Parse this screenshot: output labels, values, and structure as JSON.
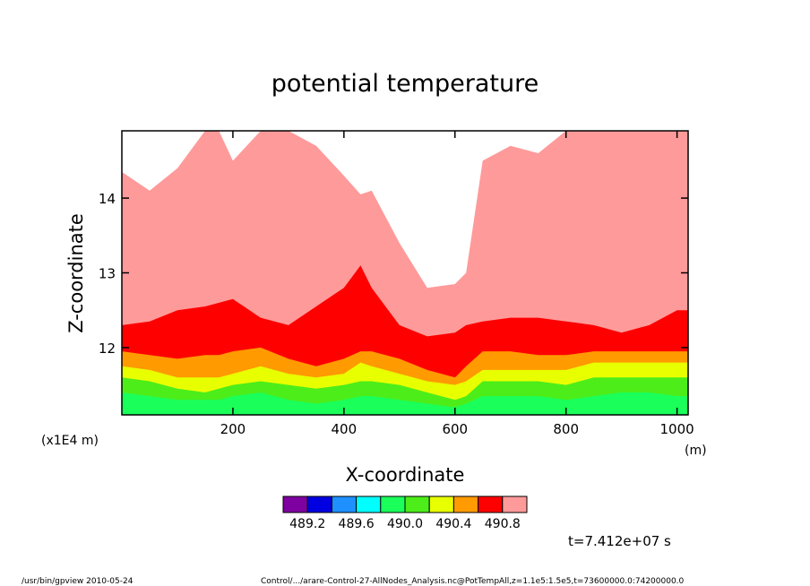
{
  "chart_data": {
    "type": "heatmap",
    "title": "potential temperature",
    "xlabel": "X-coordinate",
    "ylabel": "Z-coordinate",
    "x_unit": "(m)",
    "y_scale_note": "(x1E4 m)",
    "xlim": [
      0,
      1020
    ],
    "ylim": [
      11.1,
      14.9
    ],
    "x_ticks": [
      "200",
      "400",
      "600",
      "800",
      "1000"
    ],
    "x_tick_values": [
      200,
      400,
      600,
      800,
      1000
    ],
    "y_ticks": [
      "12",
      "13",
      "14"
    ],
    "y_tick_values": [
      12,
      13,
      14
    ],
    "colorbar": {
      "colors": [
        "#7f00a0",
        "#0000e0",
        "#1e90ff",
        "#00ffff",
        "#1aff5a",
        "#4ded1a",
        "#e8ff00",
        "#ff9a00",
        "#ff0000",
        "#ff9a9a"
      ],
      "labels": [
        "489.2",
        "489.6",
        "490.0",
        "490.4",
        "490.8"
      ]
    },
    "x_samples": [
      0,
      50,
      100,
      150,
      175,
      200,
      250,
      300,
      350,
      400,
      430,
      450,
      500,
      550,
      600,
      620,
      650,
      700,
      750,
      800,
      850,
      900,
      950,
      1000,
      1020
    ],
    "contours": [
      {
        "level": "490.8",
        "color": "#ff9a9a",
        "top_z": [
          14.35,
          14.1,
          14.4,
          14.9,
          14.9,
          14.5,
          14.9,
          14.9,
          14.7,
          14.3,
          14.05,
          14.1,
          13.4,
          12.8,
          12.85,
          13.0,
          14.5,
          14.7,
          14.6,
          14.9,
          14.9,
          14.9,
          14.9,
          14.9,
          14.9
        ]
      },
      {
        "level": "490.4",
        "color": "#ff0000",
        "top_z": [
          12.3,
          12.35,
          12.5,
          12.55,
          12.6,
          12.65,
          12.4,
          12.3,
          12.55,
          12.8,
          13.1,
          12.8,
          12.3,
          12.15,
          12.2,
          12.3,
          12.35,
          12.4,
          12.4,
          12.35,
          12.3,
          12.2,
          12.3,
          12.5,
          12.5
        ]
      },
      {
        "level": "490.2",
        "color": "#ff9a00",
        "top_z": [
          11.95,
          11.9,
          11.85,
          11.9,
          11.9,
          11.95,
          12.0,
          11.85,
          11.75,
          11.85,
          11.95,
          11.95,
          11.85,
          11.7,
          11.6,
          11.75,
          11.95,
          11.95,
          11.9,
          11.9,
          11.95,
          11.95,
          11.95,
          11.95,
          11.95
        ]
      },
      {
        "level": "490.0",
        "color": "#e8ff00",
        "top_z": [
          11.75,
          11.7,
          11.6,
          11.6,
          11.6,
          11.65,
          11.75,
          11.65,
          11.6,
          11.65,
          11.8,
          11.75,
          11.65,
          11.55,
          11.5,
          11.55,
          11.7,
          11.7,
          11.7,
          11.7,
          11.8,
          11.8,
          11.8,
          11.8,
          11.8
        ]
      },
      {
        "level": "489.8",
        "color": "#4ded1a",
        "top_z": [
          11.6,
          11.55,
          11.45,
          11.4,
          11.45,
          11.5,
          11.55,
          11.5,
          11.45,
          11.5,
          11.55,
          11.55,
          11.5,
          11.4,
          11.3,
          11.35,
          11.55,
          11.55,
          11.55,
          11.5,
          11.6,
          11.6,
          11.6,
          11.6,
          11.6
        ]
      },
      {
        "level": "489.6",
        "color": "#1aff5a",
        "top_z": [
          11.4,
          11.35,
          11.3,
          11.3,
          11.3,
          11.35,
          11.4,
          11.3,
          11.25,
          11.3,
          11.35,
          11.35,
          11.3,
          11.25,
          11.2,
          11.25,
          11.35,
          11.35,
          11.35,
          11.3,
          11.35,
          11.4,
          11.4,
          11.35,
          11.35
        ]
      }
    ]
  },
  "time_label": "t=7.412e+07 s",
  "footer_left": "/usr/bin/gpview  2010-05-24",
  "footer_right": "Control/.../arare-Control-27-AllNodes_Analysis.nc@PotTempAll,z=1.1e5:1.5e5,t=73600000.0:74200000.0"
}
